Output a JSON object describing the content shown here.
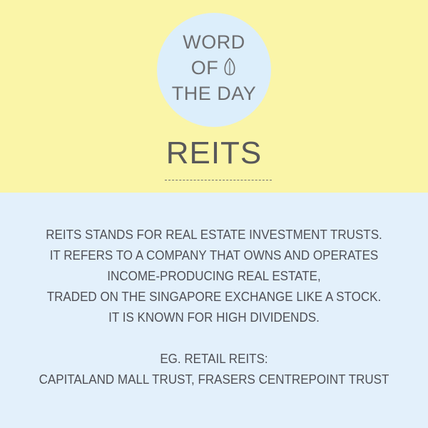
{
  "header": {
    "badge_line1": "WORD",
    "badge_line2": "OF",
    "badge_line3": "THE DAY",
    "badge_icon": "seed-icon",
    "word": "REITS"
  },
  "definition": {
    "lines": [
      "REITS STANDS FOR REAL ESTATE INVESTMENT TRUSTS.",
      "IT REFERS TO A COMPANY THAT OWNS AND OPERATES",
      "INCOME-PRODUCING REAL ESTATE,",
      "TRADED ON THE SINGAPORE EXCHANGE LIKE A STOCK.",
      "IT IS KNOWN FOR HIGH DIVIDENDS."
    ],
    "example_label": "EG. RETAIL REITS:",
    "example_value": "CAPITALAND MALL TRUST, FRASERS CENTREPOINT TRUST"
  },
  "colors": {
    "top_background": "#faf5a8",
    "bottom_background": "#e3f0fb",
    "badge_background": "#dceefb",
    "text": "#58585a"
  }
}
